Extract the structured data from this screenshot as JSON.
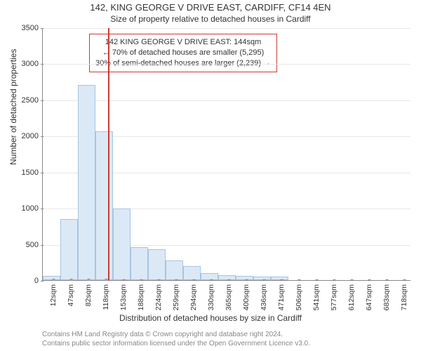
{
  "title": "142, KING GEORGE V DRIVE EAST, CARDIFF, CF14 4EN",
  "subtitle": "Size of property relative to detached houses in Cardiff",
  "ylabel": "Number of detached properties",
  "xlabel": "Distribution of detached houses by size in Cardiff",
  "chart": {
    "type": "bar",
    "background_color": "#ffffff",
    "grid_color": "#e8e8e8",
    "axis_color": "#888888",
    "bar_fill": "#dbe9f6",
    "bar_border": "#a7c4e2",
    "bar_width": 0.98,
    "ylim": [
      0,
      3500
    ],
    "ytick_step": 500,
    "yticks": [
      0,
      500,
      1000,
      1500,
      2000,
      2500,
      3000,
      3500
    ],
    "categories": [
      "12sqm",
      "47sqm",
      "82sqm",
      "118sqm",
      "153sqm",
      "188sqm",
      "224sqm",
      "259sqm",
      "294sqm",
      "330sqm",
      "365sqm",
      "400sqm",
      "436sqm",
      "471sqm",
      "506sqm",
      "541sqm",
      "577sqm",
      "612sqm",
      "647sqm",
      "683sqm",
      "718sqm"
    ],
    "values": [
      60,
      850,
      2700,
      2060,
      990,
      460,
      430,
      270,
      190,
      95,
      70,
      55,
      45,
      50,
      0,
      0,
      0,
      0,
      0,
      0,
      0
    ],
    "title_fontsize": 13,
    "label_fontsize": 12,
    "tick_fontsize": 11
  },
  "marker": {
    "color": "#cc3a33",
    "bin_index": 3,
    "fraction_within_bin": 0.74,
    "line_width": 2
  },
  "info_box": {
    "border_color": "#cc3a33",
    "line1": "142 KING GEORGE V DRIVE EAST: 144sqm",
    "line2": "← 70% of detached houses are smaller (5,295)",
    "line3": "30% of semi-detached houses are larger (2,239) →"
  },
  "footer": {
    "line1": "Contains HM Land Registry data © Crown copyright and database right 2024.",
    "line2": "Contains public sector information licensed under the Open Government Licence v3.0."
  }
}
